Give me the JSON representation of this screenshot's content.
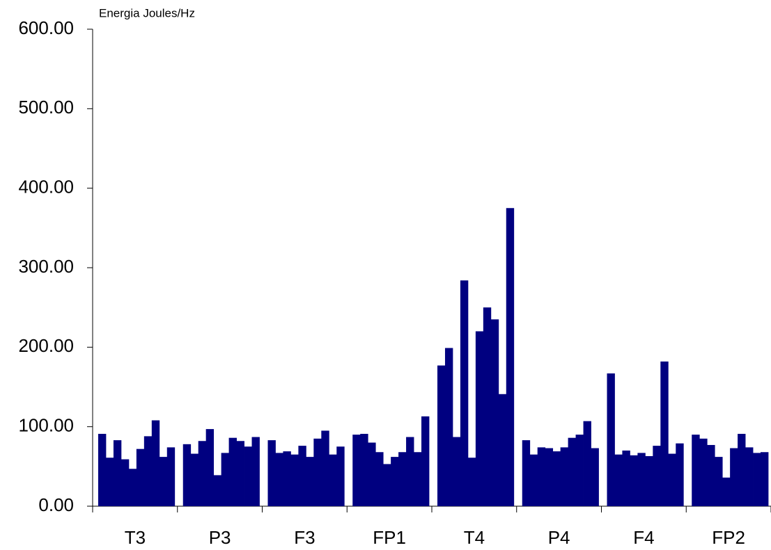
{
  "chart_data": {
    "type": "bar",
    "ylabel": "Energia Joules/Hz",
    "categories": [
      "T3",
      "P3",
      "F3",
      "FP1",
      "T4",
      "P4",
      "F4",
      "FP2"
    ],
    "values": [
      [
        91,
        61,
        83,
        59,
        47,
        72,
        88,
        108,
        62,
        74
      ],
      [
        78,
        66,
        82,
        97,
        39,
        67,
        86,
        82,
        75,
        87
      ],
      [
        83,
        67,
        69,
        65,
        76,
        62,
        85,
        95,
        65,
        75
      ],
      [
        90,
        91,
        80,
        68,
        53,
        62,
        68,
        87,
        68,
        113
      ],
      [
        177,
        199,
        87,
        284,
        61,
        220,
        250,
        235,
        141,
        375
      ],
      [
        83,
        65,
        74,
        73,
        69,
        74,
        86,
        90,
        107,
        73
      ],
      [
        167,
        65,
        70,
        64,
        67,
        63,
        76,
        182,
        66,
        79
      ],
      [
        90,
        85,
        77,
        62,
        36,
        73,
        91,
        74,
        67,
        68
      ]
    ],
    "color": "#000080",
    "ylim": [
      0,
      600
    ],
    "yticks": [
      {
        "value": 0,
        "label": "0.00"
      },
      {
        "value": 100,
        "label": "100.00"
      },
      {
        "value": 200,
        "label": "200.00"
      },
      {
        "value": 300,
        "label": "300.00"
      },
      {
        "value": 400,
        "label": "400.00"
      },
      {
        "value": 500,
        "label": "500.00"
      },
      {
        "value": 600,
        "label": "600.00"
      }
    ]
  }
}
